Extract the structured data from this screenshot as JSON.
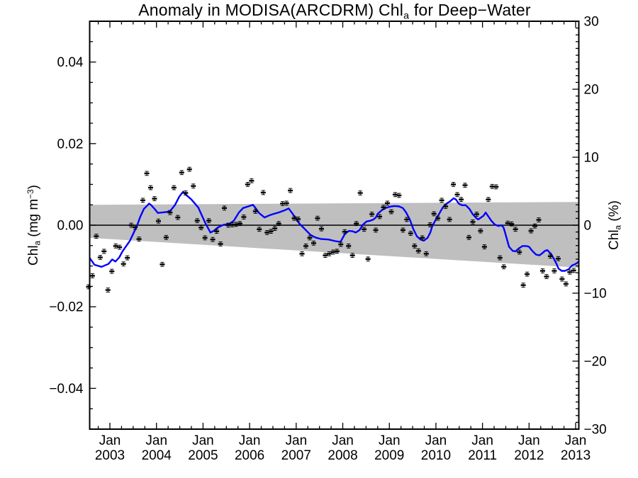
{
  "chart_data": {
    "type": "scatter+line",
    "title": "Anomaly in MODISA(ARCDRM) Chla for Deep−Water",
    "title_parts": {
      "pre": "Anomaly in MODISA(ARCDRM) Chl",
      "sub": "a",
      "post": " for Deep−Water"
    },
    "left_axis_label_parts": {
      "pre": "Chl",
      "sub": "a",
      "mid": " (mg m",
      "sup": "−3",
      "post": ")"
    },
    "right_axis_label_parts": {
      "pre": "Chl",
      "sub": "a",
      "post": " (%)"
    },
    "x_range": [
      2002.566,
      2013.068
    ],
    "y_range_mg": [
      -0.05,
      0.05
    ],
    "y_range_pct": [
      -30,
      30
    ],
    "x_ticks": {
      "values": [
        2003,
        2004,
        2005,
        2006,
        2007,
        2008,
        2009,
        2010,
        2011,
        2012,
        2013
      ],
      "labels": [
        {
          "line1": "Jan",
          "line2": "2003"
        },
        {
          "line1": "Jan",
          "line2": "2004"
        },
        {
          "line1": "Jan",
          "line2": "2005"
        },
        {
          "line1": "Jan",
          "line2": "2006"
        },
        {
          "line1": "Jan",
          "line2": "2007"
        },
        {
          "line1": "Jan",
          "line2": "2008"
        },
        {
          "line1": "Jan",
          "line2": "2009"
        },
        {
          "line1": "Jan",
          "line2": "2010"
        },
        {
          "line1": "Jan",
          "line2": "2011"
        },
        {
          "line1": "Jan",
          "line2": "2012"
        },
        {
          "line1": "Jan",
          "line2": "2013"
        }
      ],
      "minor_step_years": 0.25
    },
    "y_left_ticks": {
      "values": [
        0.04,
        0.02,
        0,
        -0.02,
        -0.04
      ],
      "labels": [
        "0.04",
        "0.02",
        "0.00",
        "−0.02",
        "−0.04"
      ],
      "minor_step": 0.005
    },
    "y_right_ticks": {
      "values": [
        30,
        20,
        10,
        0,
        -10,
        -20,
        -30
      ],
      "labels": [
        "30",
        "20",
        "10",
        "0",
        "−10",
        "−20",
        "−30"
      ],
      "minor_step": 1
    },
    "zero_line": 0,
    "point_error_mg": 0.0005,
    "band": {
      "x": [
        2002.566,
        2013.068
      ],
      "top": [
        0.005,
        0.0057
      ],
      "bottom": [
        -0.0031,
        -0.0104
      ]
    },
    "colors": {
      "points": "#000000",
      "smooth_line": "#0000ff",
      "band": "#bfbfbf",
      "axis": "#000000",
      "background": "#ffffff"
    },
    "points": [
      [
        2002.542,
        -0.0151
      ],
      [
        2002.625,
        -0.0124
      ],
      [
        2002.708,
        -0.0027
      ],
      [
        2002.792,
        -0.0079
      ],
      [
        2002.875,
        -0.0064
      ],
      [
        2002.958,
        -0.0159
      ],
      [
        2003.042,
        -0.0113
      ],
      [
        2003.125,
        -0.0051
      ],
      [
        2003.208,
        -0.0054
      ],
      [
        2003.292,
        -0.0095
      ],
      [
        2003.375,
        -0.008
      ],
      [
        2003.458,
        0
      ],
      [
        2003.542,
        -0.0005
      ],
      [
        2003.625,
        -0.0034
      ],
      [
        2003.708,
        0.0061
      ],
      [
        2003.792,
        0.0127
      ],
      [
        2003.875,
        0.0092
      ],
      [
        2003.958,
        0.0065
      ],
      [
        2004.042,
        0.001
      ],
      [
        2004.125,
        -0.0096
      ],
      [
        2004.208,
        -0.003
      ],
      [
        2004.292,
        0.0031
      ],
      [
        2004.375,
        0.0092
      ],
      [
        2004.458,
        0.0019
      ],
      [
        2004.542,
        0.0129
      ],
      [
        2004.625,
        0.0079
      ],
      [
        2004.708,
        0.0137
      ],
      [
        2004.792,
        0.0096
      ],
      [
        2004.875,
        0.0011
      ],
      [
        2004.958,
        -0.0006
      ],
      [
        2005.042,
        -0.0031
      ],
      [
        2005.125,
        0.0011
      ],
      [
        2005.208,
        -0.0035
      ],
      [
        2005.292,
        -0.0015
      ],
      [
        2005.375,
        -0.0046
      ],
      [
        2005.458,
        0.0042
      ],
      [
        2005.542,
        0
      ],
      [
        2005.625,
        0.0001
      ],
      [
        2005.708,
        0.0002
      ],
      [
        2005.792,
        0.0004
      ],
      [
        2005.875,
        0.002
      ],
      [
        2005.958,
        0.01
      ],
      [
        2006.042,
        0.0109
      ],
      [
        2006.125,
        0.0034
      ],
      [
        2006.208,
        -0.001
      ],
      [
        2006.292,
        0.008
      ],
      [
        2006.375,
        -0.0018
      ],
      [
        2006.458,
        -0.0015
      ],
      [
        2006.542,
        -0.0008
      ],
      [
        2006.625,
        0.0004
      ],
      [
        2006.708,
        0.0053
      ],
      [
        2006.792,
        0.0054
      ],
      [
        2006.875,
        0.0085
      ],
      [
        2006.958,
        0.0017
      ],
      [
        2007.042,
        0.0015
      ],
      [
        2007.125,
        -0.007
      ],
      [
        2007.208,
        -0.0051
      ],
      [
        2007.292,
        -0.0031
      ],
      [
        2007.375,
        -0.0044
      ],
      [
        2007.458,
        0.0017
      ],
      [
        2007.542,
        -0.0009
      ],
      [
        2007.625,
        -0.0074
      ],
      [
        2007.708,
        -0.007
      ],
      [
        2007.792,
        -0.0066
      ],
      [
        2007.875,
        -0.0064
      ],
      [
        2007.958,
        -0.0047
      ],
      [
        2008.042,
        -0.0016
      ],
      [
        2008.125,
        -0.0051
      ],
      [
        2008.208,
        -0.0074
      ],
      [
        2008.292,
        0.0004
      ],
      [
        2008.375,
        0.0079
      ],
      [
        2008.458,
        -0.001
      ],
      [
        2008.542,
        -0.0083
      ],
      [
        2008.625,
        0.0027
      ],
      [
        2008.708,
        -0.0012
      ],
      [
        2008.792,
        0.0021
      ],
      [
        2008.875,
        0.0044
      ],
      [
        2008.958,
        0.0054
      ],
      [
        2009.042,
        0.0033
      ],
      [
        2009.125,
        0.0075
      ],
      [
        2009.208,
        0.0073
      ],
      [
        2009.292,
        -0.0012
      ],
      [
        2009.375,
        0.0014
      ],
      [
        2009.458,
        -0.002
      ],
      [
        2009.542,
        -0.0051
      ],
      [
        2009.625,
        -0.0063
      ],
      [
        2009.708,
        -0.0031
      ],
      [
        2009.792,
        -0.007
      ],
      [
        2009.875,
        0.0001
      ],
      [
        2009.958,
        0.0028
      ],
      [
        2010.042,
        0.0017
      ],
      [
        2010.125,
        0.0061
      ],
      [
        2010.208,
        0.0046
      ],
      [
        2010.292,
        0.0014
      ],
      [
        2010.375,
        0.01
      ],
      [
        2010.458,
        0.0075
      ],
      [
        2010.542,
        0.0063
      ],
      [
        2010.625,
        0.0098
      ],
      [
        2010.708,
        -0.003
      ],
      [
        2010.792,
        0.0008
      ],
      [
        2010.875,
        0.0027
      ],
      [
        2010.958,
        -0.0014
      ],
      [
        2011.042,
        -0.0053
      ],
      [
        2011.125,
        0.0063
      ],
      [
        2011.208,
        0.0095
      ],
      [
        2011.292,
        0.0094
      ],
      [
        2011.375,
        -0.008
      ],
      [
        2011.458,
        -0.0102
      ],
      [
        2011.542,
        0.0005
      ],
      [
        2011.625,
        0.0003
      ],
      [
        2011.708,
        -0.001
      ],
      [
        2011.792,
        -0.0066
      ],
      [
        2011.875,
        -0.0147
      ],
      [
        2011.958,
        -0.012
      ],
      [
        2012.042,
        -0.0014
      ],
      [
        2012.125,
        -0.0002
      ],
      [
        2012.208,
        0.0013
      ],
      [
        2012.292,
        -0.0112
      ],
      [
        2012.375,
        -0.0126
      ],
      [
        2012.458,
        -0.0076
      ],
      [
        2012.542,
        -0.0112
      ],
      [
        2012.625,
        -0.0082
      ],
      [
        2012.708,
        -0.0132
      ],
      [
        2012.792,
        -0.0144
      ],
      [
        2012.875,
        -0.0115
      ],
      [
        2012.958,
        -0.0111
      ]
    ],
    "smooth_line": [
      [
        2002.57,
        -0.0081
      ],
      [
        2002.67,
        -0.0097
      ],
      [
        2002.82,
        -0.0102
      ],
      [
        2002.97,
        -0.0095
      ],
      [
        2003.05,
        -0.0084
      ],
      [
        2003.12,
        -0.0089
      ],
      [
        2003.2,
        -0.0079
      ],
      [
        2003.27,
        -0.0064
      ],
      [
        2003.43,
        -0.0038
      ],
      [
        2003.58,
        -0.0002
      ],
      [
        2003.65,
        0.002
      ],
      [
        2003.73,
        0.004
      ],
      [
        2003.81,
        0.0049
      ],
      [
        2003.84,
        0.0053
      ],
      [
        2003.88,
        0.005
      ],
      [
        2003.96,
        0.004
      ],
      [
        2004.03,
        0.003
      ],
      [
        2004.19,
        0.0032
      ],
      [
        2004.29,
        0.0034
      ],
      [
        2004.4,
        0.005
      ],
      [
        2004.49,
        0.007
      ],
      [
        2004.57,
        0.0082
      ],
      [
        2004.63,
        0.0075
      ],
      [
        2004.75,
        0.0063
      ],
      [
        2004.9,
        0.0043
      ],
      [
        2005.05,
        0.0005
      ],
      [
        2005.16,
        -0.0018
      ],
      [
        2005.24,
        -0.0013
      ],
      [
        2005.31,
        -0.0006
      ],
      [
        2005.44,
        0.0001
      ],
      [
        2005.56,
        0.0003
      ],
      [
        2005.66,
        0.0011
      ],
      [
        2005.77,
        0.0031
      ],
      [
        2005.86,
        0.0042
      ],
      [
        2005.97,
        0.0046
      ],
      [
        2006.07,
        0.005
      ],
      [
        2006.12,
        0.0043
      ],
      [
        2006.2,
        0.003
      ],
      [
        2006.32,
        0.0019
      ],
      [
        2006.42,
        0.0024
      ],
      [
        2006.5,
        0.0027
      ],
      [
        2006.62,
        0.0031
      ],
      [
        2006.76,
        0.0037
      ],
      [
        2006.84,
        0.0041
      ],
      [
        2006.93,
        0.0027
      ],
      [
        2007.06,
        0.0005
      ],
      [
        2007.19,
        -0.001
      ],
      [
        2007.31,
        -0.0024
      ],
      [
        2007.41,
        -0.003
      ],
      [
        2007.54,
        -0.0034
      ],
      [
        2007.69,
        -0.0035
      ],
      [
        2007.84,
        -0.0039
      ],
      [
        2007.95,
        -0.0041
      ],
      [
        2008.05,
        -0.0021
      ],
      [
        2008.13,
        -0.0014
      ],
      [
        2008.21,
        -0.0015
      ],
      [
        2008.28,
        -0.0018
      ],
      [
        2008.36,
        -0.0012
      ],
      [
        2008.43,
        0.0001
      ],
      [
        2008.51,
        0.0009
      ],
      [
        2008.59,
        0.0011
      ],
      [
        2008.66,
        0.0014
      ],
      [
        2008.71,
        0.0019
      ],
      [
        2008.75,
        0.0028
      ],
      [
        2008.83,
        0.0036
      ],
      [
        2008.91,
        0.0042
      ],
      [
        2009.04,
        0.0046
      ],
      [
        2009.12,
        0.0047
      ],
      [
        2009.21,
        0.0046
      ],
      [
        2009.29,
        0.0042
      ],
      [
        2009.36,
        0.0031
      ],
      [
        2009.44,
        0.0014
      ],
      [
        2009.51,
        -0.0008
      ],
      [
        2009.59,
        -0.0027
      ],
      [
        2009.67,
        -0.0035
      ],
      [
        2009.74,
        -0.0038
      ],
      [
        2009.82,
        -0.0031
      ],
      [
        2009.88,
        -0.0018
      ],
      [
        2009.92,
        -0.0003
      ],
      [
        2010,
        0.0014
      ],
      [
        2010.08,
        0.003
      ],
      [
        2010.15,
        0.0044
      ],
      [
        2010.23,
        0.0053
      ],
      [
        2010.31,
        0.0059
      ],
      [
        2010.38,
        0.0066
      ],
      [
        2010.43,
        0.0063
      ],
      [
        2010.49,
        0.0053
      ],
      [
        2010.56,
        0.0049
      ],
      [
        2010.64,
        0.0049
      ],
      [
        2010.72,
        0.004
      ],
      [
        2010.79,
        0.0027
      ],
      [
        2010.87,
        0.0017
      ],
      [
        2010.91,
        0.0014
      ],
      [
        2011.02,
        0.0023
      ],
      [
        2011.07,
        0.0031
      ],
      [
        2011.11,
        0.0024
      ],
      [
        2011.19,
        0.0011
      ],
      [
        2011.26,
        0.0002
      ],
      [
        2011.34,
        -0.0002
      ],
      [
        2011.4,
        0
      ],
      [
        2011.45,
        -0.0005
      ],
      [
        2011.49,
        -0.002
      ],
      [
        2011.57,
        -0.0053
      ],
      [
        2011.65,
        -0.0063
      ],
      [
        2011.71,
        -0.0064
      ],
      [
        2011.78,
        -0.0057
      ],
      [
        2011.86,
        -0.0051
      ],
      [
        2011.94,
        -0.0051
      ],
      [
        2012,
        -0.0053
      ],
      [
        2012.07,
        -0.0063
      ],
      [
        2012.15,
        -0.0072
      ],
      [
        2012.22,
        -0.0074
      ],
      [
        2012.27,
        -0.007
      ],
      [
        2012.34,
        -0.0063
      ],
      [
        2012.39,
        -0.0061
      ],
      [
        2012.47,
        -0.007
      ],
      [
        2012.53,
        -0.0082
      ],
      [
        2012.59,
        -0.0095
      ],
      [
        2012.63,
        -0.0106
      ],
      [
        2012.7,
        -0.0112
      ],
      [
        2012.77,
        -0.0112
      ],
      [
        2012.85,
        -0.0108
      ],
      [
        2012.92,
        -0.0099
      ],
      [
        2013,
        -0.0095
      ],
      [
        2013.06,
        -0.009
      ]
    ]
  }
}
